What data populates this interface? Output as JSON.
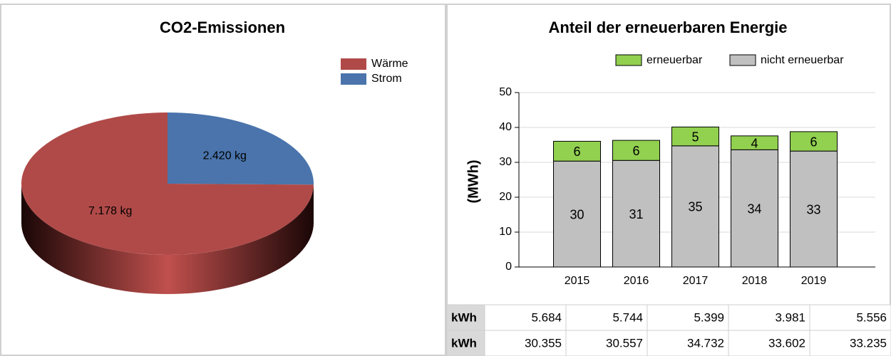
{
  "chart_data": [
    {
      "type": "pie",
      "title": "CO2-Emissionen",
      "categories": [
        "Wärme",
        "Strom"
      ],
      "values": [
        7178,
        2420
      ],
      "value_labels": [
        "7.178 kg",
        "2.420 kg"
      ],
      "colors": [
        "#b04a48",
        "#4a74ab"
      ],
      "legend": "top-right"
    },
    {
      "type": "bar",
      "title": "Anteil der erneuerbaren Energie",
      "stacked": true,
      "ylabel": "(MWh)",
      "categories": [
        "2015",
        "2016",
        "2017",
        "2018",
        "2019"
      ],
      "series": [
        {
          "name": "erneuerbar",
          "color": "#92d050",
          "values": [
            5.684,
            5.744,
            5.399,
            3.981,
            5.556
          ],
          "value_labels": [
            "6",
            "6",
            "5",
            "4",
            "6"
          ]
        },
        {
          "name": "nicht erneuerbar",
          "color": "#c0c0c0",
          "values": [
            30.355,
            30.557,
            34.732,
            33.602,
            33.235
          ],
          "value_labels": [
            "30",
            "31",
            "35",
            "34",
            "33"
          ]
        }
      ],
      "ylim": [
        0,
        50
      ],
      "yticks": [
        0,
        10,
        20,
        30,
        40,
        50
      ],
      "grid": true,
      "legend": "top"
    }
  ],
  "table": {
    "rows": [
      [
        "kWh",
        "5.684",
        "5.744",
        "5.399",
        "3.981",
        "5.556"
      ],
      [
        "kWh",
        "30.355",
        "30.557",
        "34.732",
        "33.602",
        "33.235"
      ]
    ]
  }
}
